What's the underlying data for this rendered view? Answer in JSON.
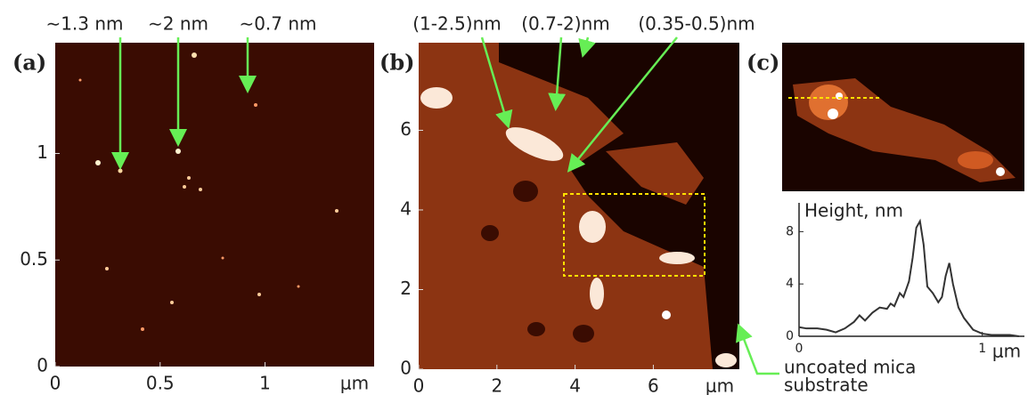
{
  "panel_a": {
    "label": "(a)",
    "annotations": [
      "∼1.3 nm",
      "∼2 nm",
      "∼0.7 nm"
    ],
    "xlim": [
      0,
      1.52
    ],
    "ylim": [
      0,
      1.52
    ],
    "xticks": [
      0,
      0.5,
      1
    ],
    "yticks": [
      0,
      0.5,
      1
    ],
    "unit": "μm"
  },
  "panel_b": {
    "label": "(b)",
    "annotations": [
      "(1-2.5)nm",
      "(0.7-2)nm",
      "(0.35-0.5)nm"
    ],
    "substrate_note": [
      "uncoated mica",
      "substrate"
    ],
    "xlim": [
      0,
      8.2
    ],
    "ylim": [
      0,
      8.2
    ],
    "xticks": [
      0,
      2,
      4,
      6
    ],
    "yticks": [
      0,
      2,
      4,
      6
    ],
    "unit": "μm"
  },
  "panel_c": {
    "label": "(c)"
  },
  "chart_data": {
    "type": "line",
    "y_label": "Height, nm",
    "x": [
      0,
      0.04,
      0.1,
      0.15,
      0.2,
      0.25,
      0.3,
      0.33,
      0.36,
      0.4,
      0.44,
      0.48,
      0.5,
      0.52,
      0.55,
      0.57,
      0.6,
      0.62,
      0.64,
      0.66,
      0.68,
      0.7,
      0.73,
      0.76,
      0.78,
      0.8,
      0.82,
      0.84,
      0.87,
      0.9,
      0.95,
      1.0,
      1.05,
      1.1,
      1.15,
      1.2
    ],
    "series": [
      {
        "color": "#333333",
        "values": [
          0.7,
          0.6,
          0.6,
          0.5,
          0.3,
          0.6,
          1.1,
          1.6,
          1.2,
          1.8,
          2.2,
          2.1,
          2.5,
          2.3,
          3.3,
          3.0,
          4.2,
          6.0,
          8.3,
          8.8,
          7.0,
          3.8,
          3.3,
          2.6,
          3.0,
          4.6,
          5.6,
          4.0,
          2.2,
          1.4,
          0.5,
          0.2,
          0.1,
          0.1,
          0.1,
          0.0
        ]
      }
    ],
    "xlim": [
      0,
      1.23
    ],
    "ylim": [
      0,
      10.2
    ],
    "xticks": [
      0,
      1
    ],
    "yticks": [
      0,
      4,
      8
    ],
    "x_unit": "μm"
  }
}
